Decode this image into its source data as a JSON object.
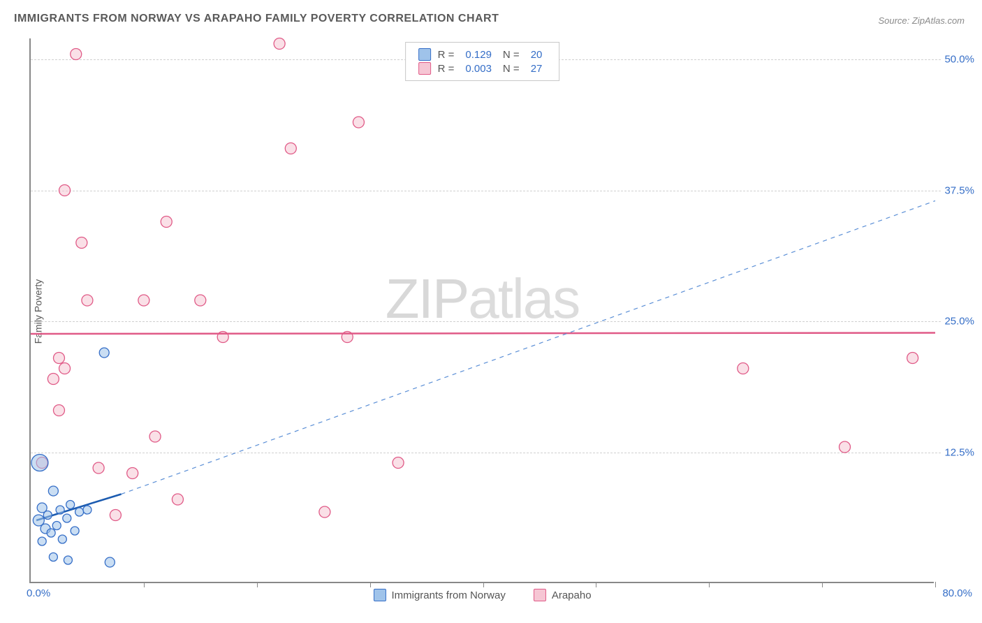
{
  "title": "IMMIGRANTS FROM NORWAY VS ARAPAHO FAMILY POVERTY CORRELATION CHART",
  "source": "Source: ZipAtlas.com",
  "ylabel": "Family Poverty",
  "watermark_a": "ZIP",
  "watermark_b": "atlas",
  "chart": {
    "type": "scatter",
    "xlim": [
      0,
      80
    ],
    "ylim": [
      0,
      52
    ],
    "xlabel_min": "0.0%",
    "xlabel_max": "80.0%",
    "xtick_positions": [
      10,
      20,
      30,
      40,
      50,
      60,
      70,
      80
    ],
    "yticks": [
      {
        "v": 12.5,
        "label": "12.5%"
      },
      {
        "v": 25.0,
        "label": "25.0%"
      },
      {
        "v": 37.5,
        "label": "37.5%"
      },
      {
        "v": 50.0,
        "label": "50.0%"
      }
    ],
    "background_color": "#ffffff",
    "grid_color": "#d0d0d0",
    "axis_color": "#888888",
    "tick_label_color": "#356ec7",
    "series": [
      {
        "name": "Immigrants from Norway",
        "fill": "#9fc3ea",
        "stroke": "#356ec7",
        "fill_opacity": 0.55,
        "trend_solid": {
          "x1": 0.5,
          "y1": 6.0,
          "x2": 8,
          "y2": 8.5,
          "color": "#1b5bb0",
          "width": 2.5
        },
        "trend_dash": {
          "x1": 8,
          "y1": 8.5,
          "x2": 80,
          "y2": 36.5,
          "color": "#5b8fd6",
          "width": 1.2
        },
        "R_label": "R =",
        "R": "0.129",
        "N_label": "N =",
        "N": "20",
        "points": [
          {
            "x": 0.8,
            "y": 11.5,
            "r": 12
          },
          {
            "x": 0.7,
            "y": 6.0,
            "r": 8
          },
          {
            "x": 1.0,
            "y": 7.2,
            "r": 7
          },
          {
            "x": 1.3,
            "y": 5.2,
            "r": 7
          },
          {
            "x": 1.5,
            "y": 6.5,
            "r": 6
          },
          {
            "x": 1.8,
            "y": 4.8,
            "r": 6
          },
          {
            "x": 2.0,
            "y": 8.8,
            "r": 7
          },
          {
            "x": 2.3,
            "y": 5.5,
            "r": 6
          },
          {
            "x": 2.6,
            "y": 7.0,
            "r": 6
          },
          {
            "x": 2.8,
            "y": 4.2,
            "r": 6
          },
          {
            "x": 3.2,
            "y": 6.2,
            "r": 6
          },
          {
            "x": 3.5,
            "y": 7.5,
            "r": 6
          },
          {
            "x": 3.9,
            "y": 5.0,
            "r": 6
          },
          {
            "x": 4.3,
            "y": 6.8,
            "r": 6
          },
          {
            "x": 5.0,
            "y": 7.0,
            "r": 6
          },
          {
            "x": 2.0,
            "y": 2.5,
            "r": 6
          },
          {
            "x": 3.3,
            "y": 2.2,
            "r": 6
          },
          {
            "x": 7.0,
            "y": 2.0,
            "r": 7
          },
          {
            "x": 6.5,
            "y": 22.0,
            "r": 7
          },
          {
            "x": 1.0,
            "y": 4.0,
            "r": 6
          }
        ]
      },
      {
        "name": "Arapaho",
        "fill": "#f6c6d4",
        "stroke": "#e05a87",
        "fill_opacity": 0.55,
        "trend_solid": {
          "x1": 0,
          "y1": 23.8,
          "x2": 80,
          "y2": 23.9,
          "color": "#e05a87",
          "width": 2.5
        },
        "R_label": "R =",
        "R": "0.003",
        "N_label": "N =",
        "N": "27",
        "points": [
          {
            "x": 4.0,
            "y": 50.5,
            "r": 8
          },
          {
            "x": 22.0,
            "y": 51.5,
            "r": 8
          },
          {
            "x": 29.0,
            "y": 44.0,
            "r": 8
          },
          {
            "x": 23.0,
            "y": 41.5,
            "r": 8
          },
          {
            "x": 3.0,
            "y": 37.5,
            "r": 8
          },
          {
            "x": 12.0,
            "y": 34.5,
            "r": 8
          },
          {
            "x": 4.5,
            "y": 32.5,
            "r": 8
          },
          {
            "x": 5.0,
            "y": 27.0,
            "r": 8
          },
          {
            "x": 10.0,
            "y": 27.0,
            "r": 8
          },
          {
            "x": 15.0,
            "y": 27.0,
            "r": 8
          },
          {
            "x": 17.0,
            "y": 23.5,
            "r": 8
          },
          {
            "x": 28.0,
            "y": 23.5,
            "r": 8
          },
          {
            "x": 2.5,
            "y": 21.5,
            "r": 8
          },
          {
            "x": 3.0,
            "y": 20.5,
            "r": 8
          },
          {
            "x": 2.0,
            "y": 19.5,
            "r": 8
          },
          {
            "x": 63.0,
            "y": 20.5,
            "r": 8
          },
          {
            "x": 78.0,
            "y": 21.5,
            "r": 8
          },
          {
            "x": 2.5,
            "y": 16.5,
            "r": 8
          },
          {
            "x": 11.0,
            "y": 14.0,
            "r": 8
          },
          {
            "x": 72.0,
            "y": 13.0,
            "r": 8
          },
          {
            "x": 1.0,
            "y": 11.5,
            "r": 8
          },
          {
            "x": 6.0,
            "y": 11.0,
            "r": 8
          },
          {
            "x": 9.0,
            "y": 10.5,
            "r": 8
          },
          {
            "x": 32.5,
            "y": 11.5,
            "r": 8
          },
          {
            "x": 13.0,
            "y": 8.0,
            "r": 8
          },
          {
            "x": 7.5,
            "y": 6.5,
            "r": 8
          },
          {
            "x": 26.0,
            "y": 6.8,
            "r": 8
          }
        ]
      }
    ]
  }
}
